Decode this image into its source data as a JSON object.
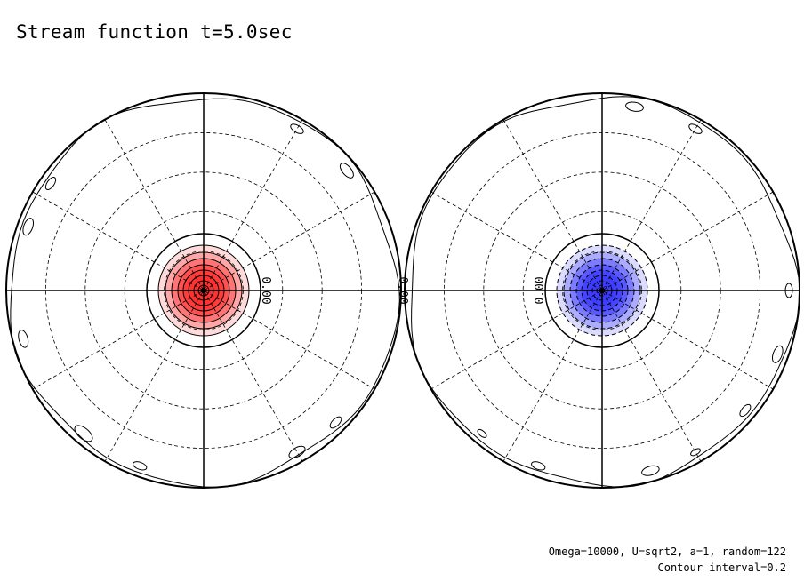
{
  "chart_data": {
    "type": "contour",
    "title": "Stream function t=5.0sec",
    "projection": "orthographic-polar",
    "panels": [
      {
        "name": "",
        "extremum_sign": "positive",
        "fill_color": "#ff3030",
        "contour_levels": [
          0.0,
          0.2,
          0.4,
          0.6,
          0.8,
          1.0,
          1.2,
          1.4,
          1.6
        ],
        "contour_label": "0.00",
        "line_style_positive": "solid"
      },
      {
        "name": "",
        "extremum_sign": "negative",
        "fill_color": "#3a3aff",
        "contour_levels": [
          0.0,
          -0.2,
          -0.4,
          -0.6,
          -0.8,
          -1.0,
          -1.2,
          -1.4
        ],
        "contour_label": "0.00",
        "line_style_negative": "dashed"
      }
    ],
    "graticule": {
      "latitude_circles": 4,
      "meridian_spacing_deg": 30,
      "style": "dashed"
    },
    "footnote": [
      "Omega=10000, U=sqrt2, a=1, random=122",
      "Contour interval=0.2"
    ],
    "contour_interval": 0.2
  }
}
